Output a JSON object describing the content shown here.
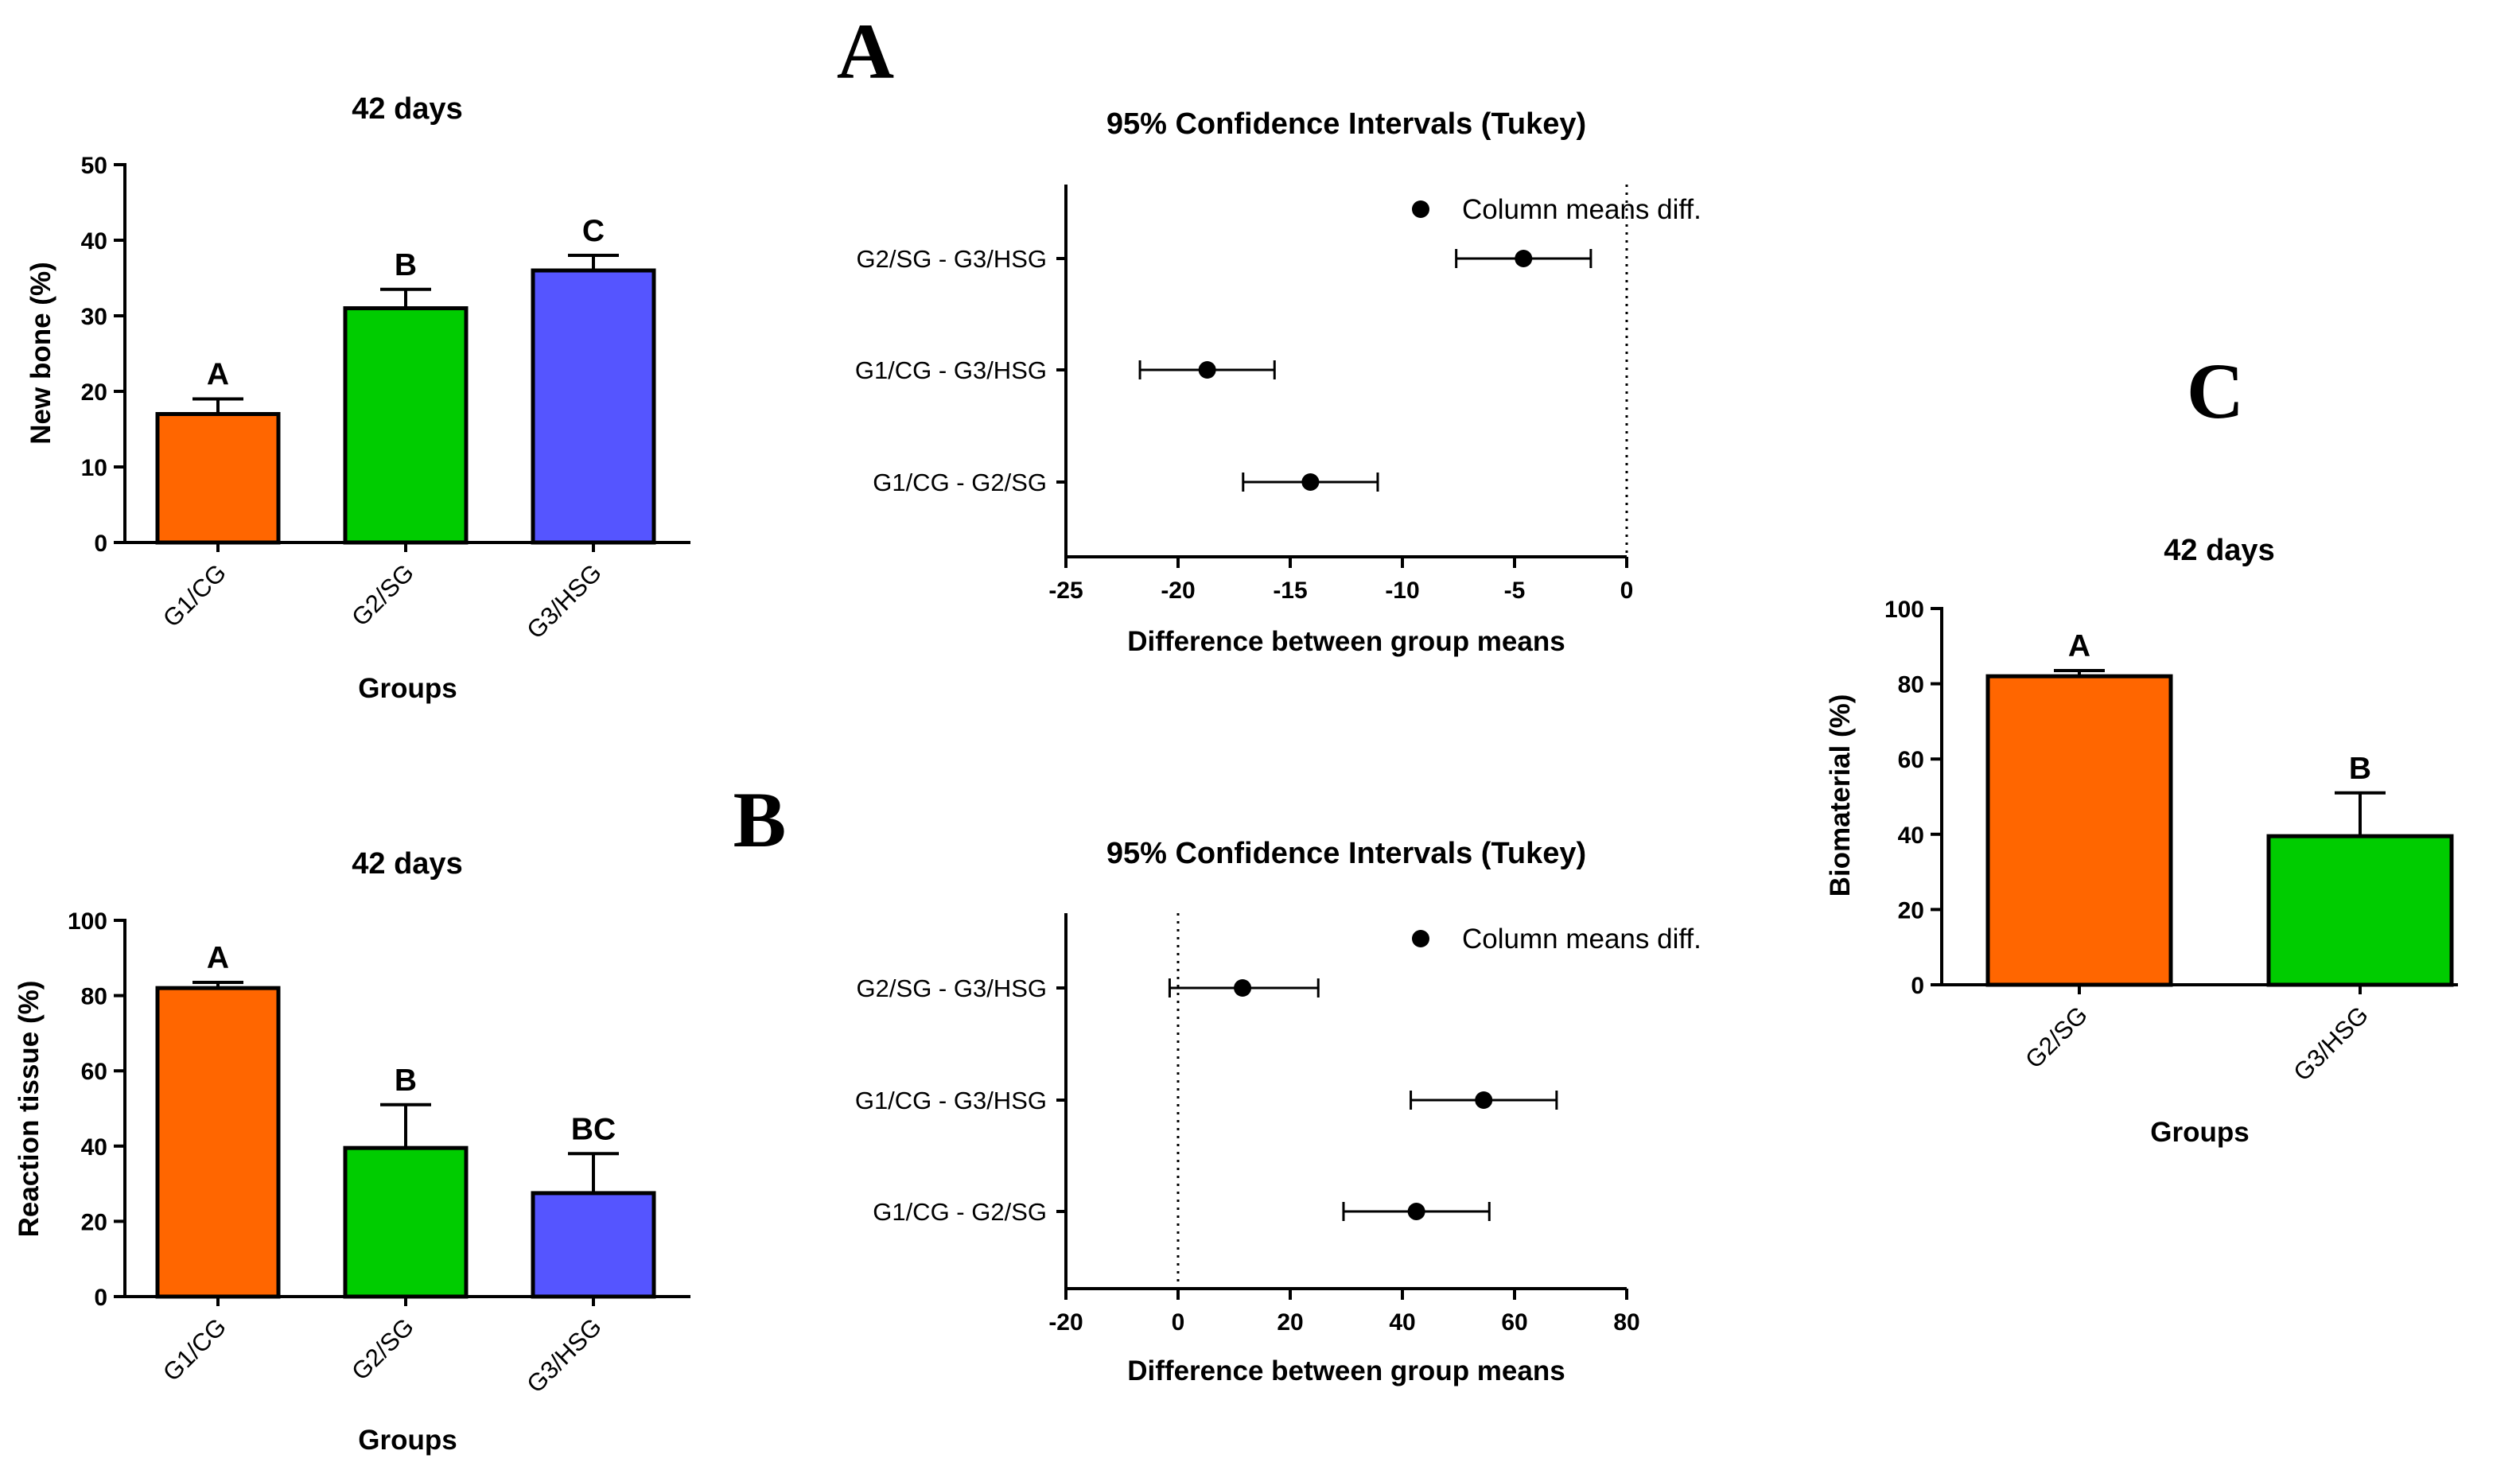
{
  "panels": {
    "A": "A",
    "B": "B",
    "C": "C"
  },
  "chart_data": [
    {
      "id": "newbone",
      "type": "bar",
      "title": "42 days",
      "xlabel": "Groups",
      "ylabel": "New bone (%)",
      "ylim": [
        0,
        50
      ],
      "yticks": [
        0,
        10,
        20,
        30,
        40,
        50
      ],
      "categories": [
        "G1/CG",
        "G2/SG",
        "G3/HSG"
      ],
      "values": [
        17,
        31,
        36
      ],
      "errors": [
        2,
        2.5,
        2
      ],
      "letters": [
        "A",
        "B",
        "C"
      ],
      "colors": [
        "#FF6600",
        "#00CC00",
        "#5555FF"
      ]
    },
    {
      "id": "reaction",
      "type": "bar",
      "title": "42 days",
      "xlabel": "Groups",
      "ylabel": "Reaction tissue (%)",
      "ylim": [
        0,
        100
      ],
      "yticks": [
        0,
        20,
        40,
        60,
        80,
        100
      ],
      "categories": [
        "G1/CG",
        "G2/SG",
        "G3/HSG"
      ],
      "values": [
        82,
        39.5,
        27.5
      ],
      "errors": [
        1.5,
        11.5,
        10.5
      ],
      "letters": [
        "A",
        "B",
        "BC"
      ],
      "colors": [
        "#FF6600",
        "#00CC00",
        "#5555FF"
      ]
    },
    {
      "id": "ciA",
      "type": "scatter",
      "title": "95% Confidence Intervals (Tukey)",
      "xlabel": "Difference between group means",
      "xlim": [
        -25,
        0
      ],
      "xticks": [
        -25,
        -20,
        -15,
        -10,
        -5,
        0
      ],
      "legend": "Column means diff.",
      "rows": [
        {
          "label": "G2/SG - G3/HSG",
          "mean": -4.6,
          "low": -7.6,
          "high": -1.6
        },
        {
          "label": "G1/CG - G3/HSG",
          "mean": -18.7,
          "low": -21.7,
          "high": -15.7
        },
        {
          "label": "G1/CG - G2/SG",
          "mean": -14.1,
          "low": -17.1,
          "high": -11.1
        }
      ]
    },
    {
      "id": "ciB",
      "type": "scatter",
      "title": "95% Confidence Intervals (Tukey)",
      "xlabel": "Difference between group means",
      "xlim": [
        -20,
        80
      ],
      "xticks": [
        -20,
        0,
        20,
        40,
        60,
        80
      ],
      "legend": "Column means diff.",
      "rows": [
        {
          "label": "G2/SG - G3/HSG",
          "mean": 11.5,
          "low": -1.5,
          "high": 25
        },
        {
          "label": "G1/CG - G3/HSG",
          "mean": 54.5,
          "low": 41.5,
          "high": 67.5
        },
        {
          "label": "G1/CG - G2/SG",
          "mean": 42.5,
          "low": 29.5,
          "high": 55.5
        }
      ]
    },
    {
      "id": "biomat",
      "type": "bar",
      "title": "42 days",
      "xlabel": "Groups",
      "ylabel": "Biomaterial (%)",
      "ylim": [
        0,
        100
      ],
      "yticks": [
        0,
        20,
        40,
        60,
        80,
        100
      ],
      "categories": [
        "G2/SG",
        "G3/HSG"
      ],
      "values": [
        82,
        39.5
      ],
      "errors": [
        1.5,
        11.5
      ],
      "letters": [
        "A",
        "B"
      ],
      "colors": [
        "#FF6600",
        "#00CC00"
      ]
    }
  ]
}
